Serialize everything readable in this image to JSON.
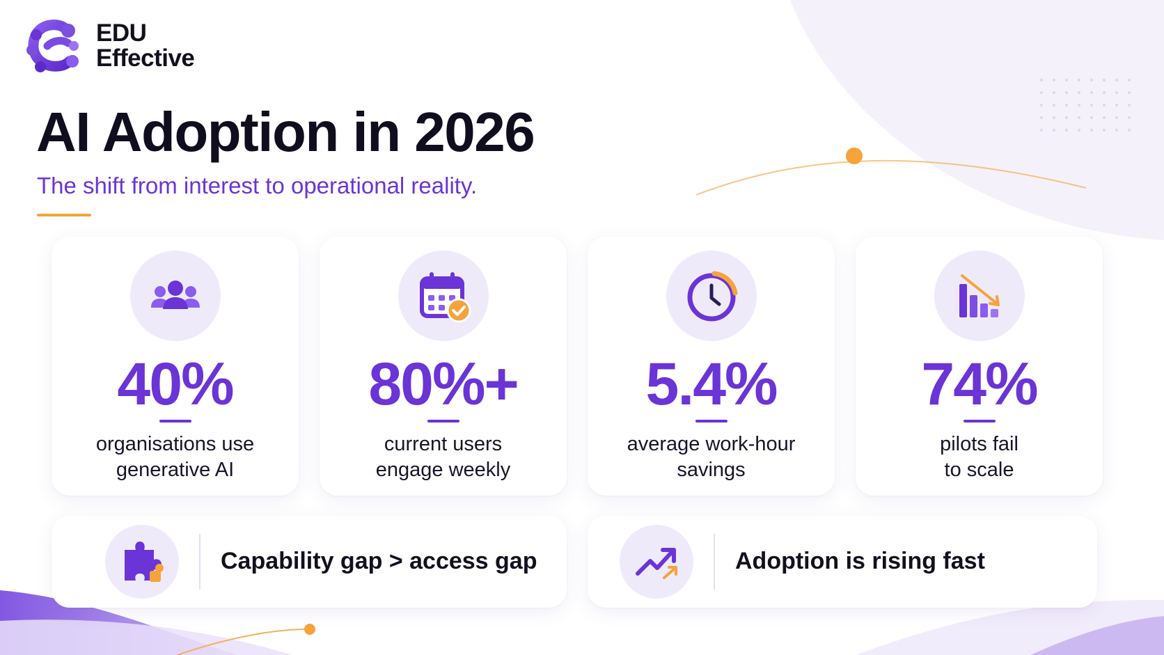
{
  "brand": {
    "line1": "EDU",
    "line2": "Effective",
    "logo_icon": "link-c-logo-icon"
  },
  "header": {
    "title": "AI Adoption in 2026",
    "subtitle": "The shift from interest to operational reality."
  },
  "stats": [
    {
      "icon": "people-group-icon",
      "value": "40%",
      "label_line1": "organisations use",
      "label_line2": "generative AI"
    },
    {
      "icon": "calendar-check-icon",
      "value": "80%+",
      "label_line1": "current users",
      "label_line2": "engage weekly"
    },
    {
      "icon": "clock-icon",
      "value": "5.4%",
      "label_line1": "average work-hour",
      "label_line2": "savings"
    },
    {
      "icon": "declining-bar-chart-icon",
      "value": "74%",
      "label_line1": "pilots fail",
      "label_line2": "to scale"
    }
  ],
  "insights": [
    {
      "icon": "puzzle-piece-icon",
      "text": "Capability gap > access gap"
    },
    {
      "icon": "trending-up-arrow-icon",
      "text": "Adoption is rising fast"
    }
  ],
  "colors": {
    "accent_purple": "#6a34d6",
    "accent_orange": "#f5a33a",
    "text_dark": "#12101f",
    "icon_bg": "#efeafa"
  }
}
